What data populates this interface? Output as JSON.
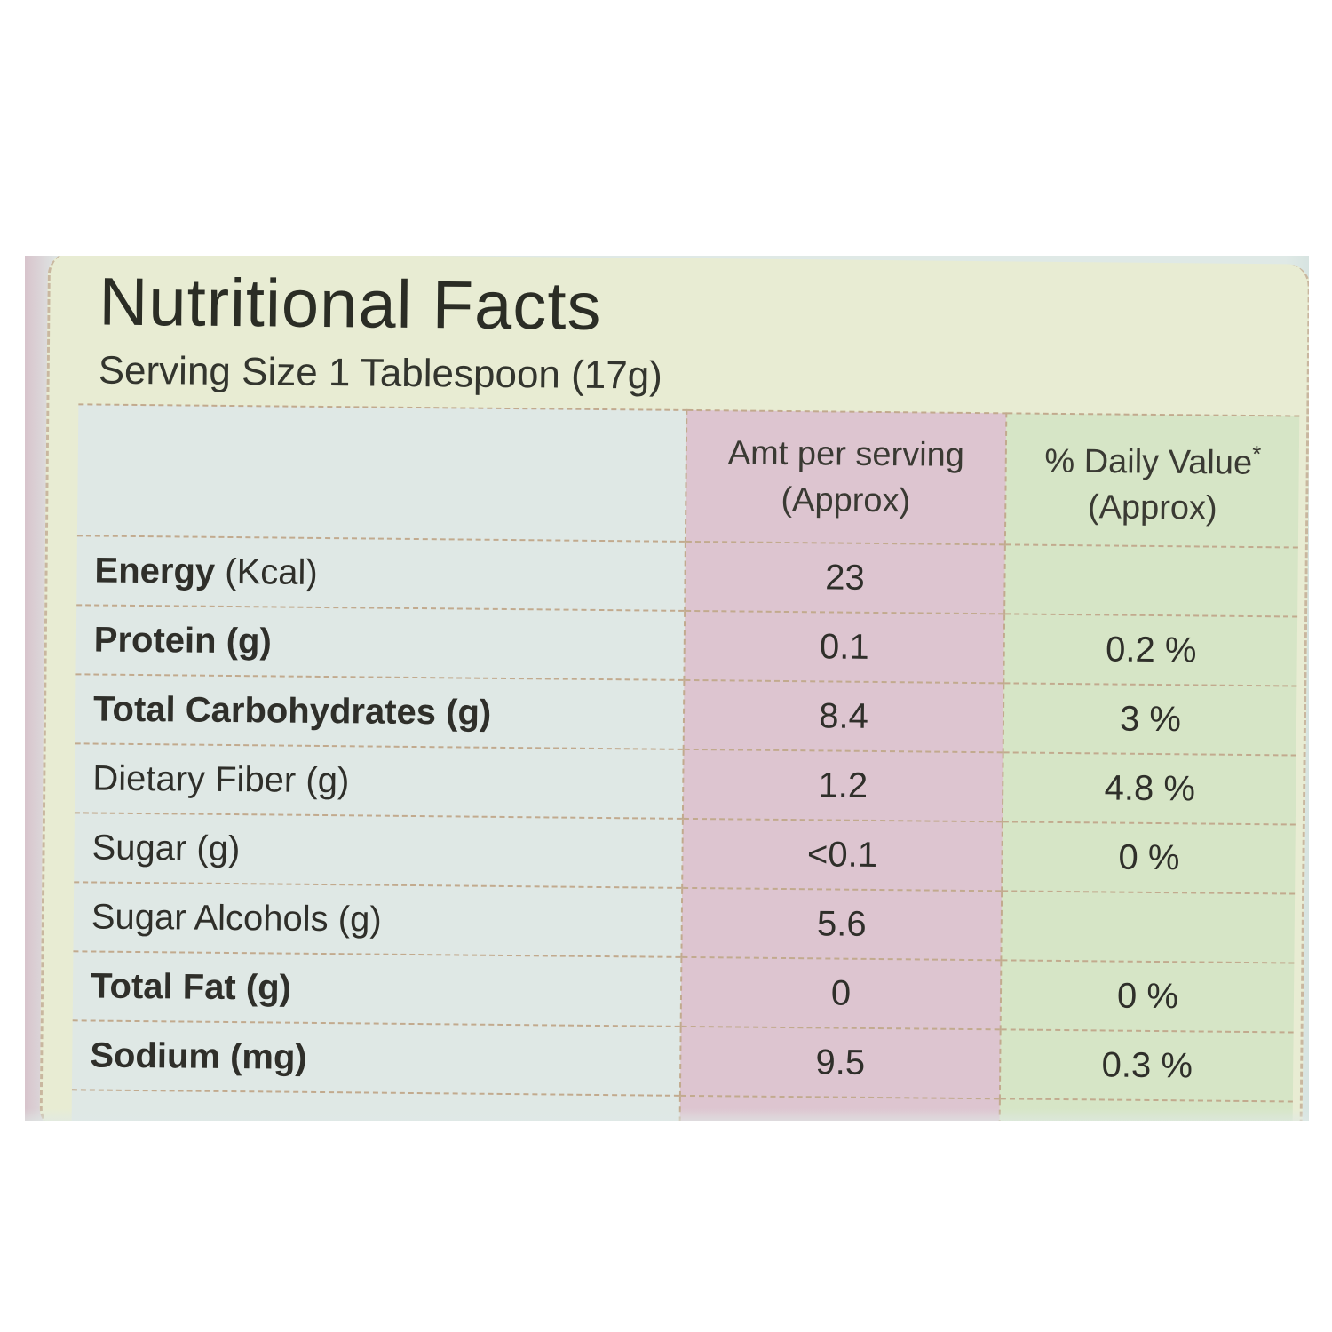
{
  "panel": {
    "title": "Nutritional Facts",
    "serving_size": "Serving Size 1 Tablespoon (17g)"
  },
  "table": {
    "headers": {
      "amount_line1": "Amt per serving",
      "amount_line2": "(Approx)",
      "daily_value_line1": "% Daily Value",
      "daily_value_mark": "*",
      "daily_value_line2": "(Approx)"
    },
    "rows": [
      {
        "name": "Energy",
        "unit": "(Kcal)",
        "amount": "23",
        "daily_value": ""
      },
      {
        "name": "Protein",
        "unit": "(g)",
        "amount": "0.1",
        "daily_value": "0.2 %"
      },
      {
        "name": "Total Carbohydrates",
        "unit": "(g)",
        "amount": "8.4",
        "daily_value": "3 %"
      },
      {
        "name": "Dietary Fiber",
        "unit": "(g)",
        "amount": "1.2",
        "daily_value": "4.8 %"
      },
      {
        "name": "Sugar",
        "unit": "(g)",
        "amount": "<0.1",
        "daily_value": "0 %"
      },
      {
        "name": "Sugar Alcohols",
        "unit": "(g)",
        "amount": "5.6",
        "daily_value": ""
      },
      {
        "name": "Total Fat",
        "unit": "(g)",
        "amount": "0",
        "daily_value": "0 %"
      },
      {
        "name": "Sodium",
        "unit": "(mg)",
        "amount": "9.5",
        "daily_value": "0.3 %"
      }
    ]
  },
  "colors": {
    "label_background": "#e8ecd3",
    "amount_column": "#ddc5d0",
    "daily_value_column": "#d6e5c6",
    "name_column": "#dfe8e5",
    "rule_lines": "#c2aa8e"
  }
}
